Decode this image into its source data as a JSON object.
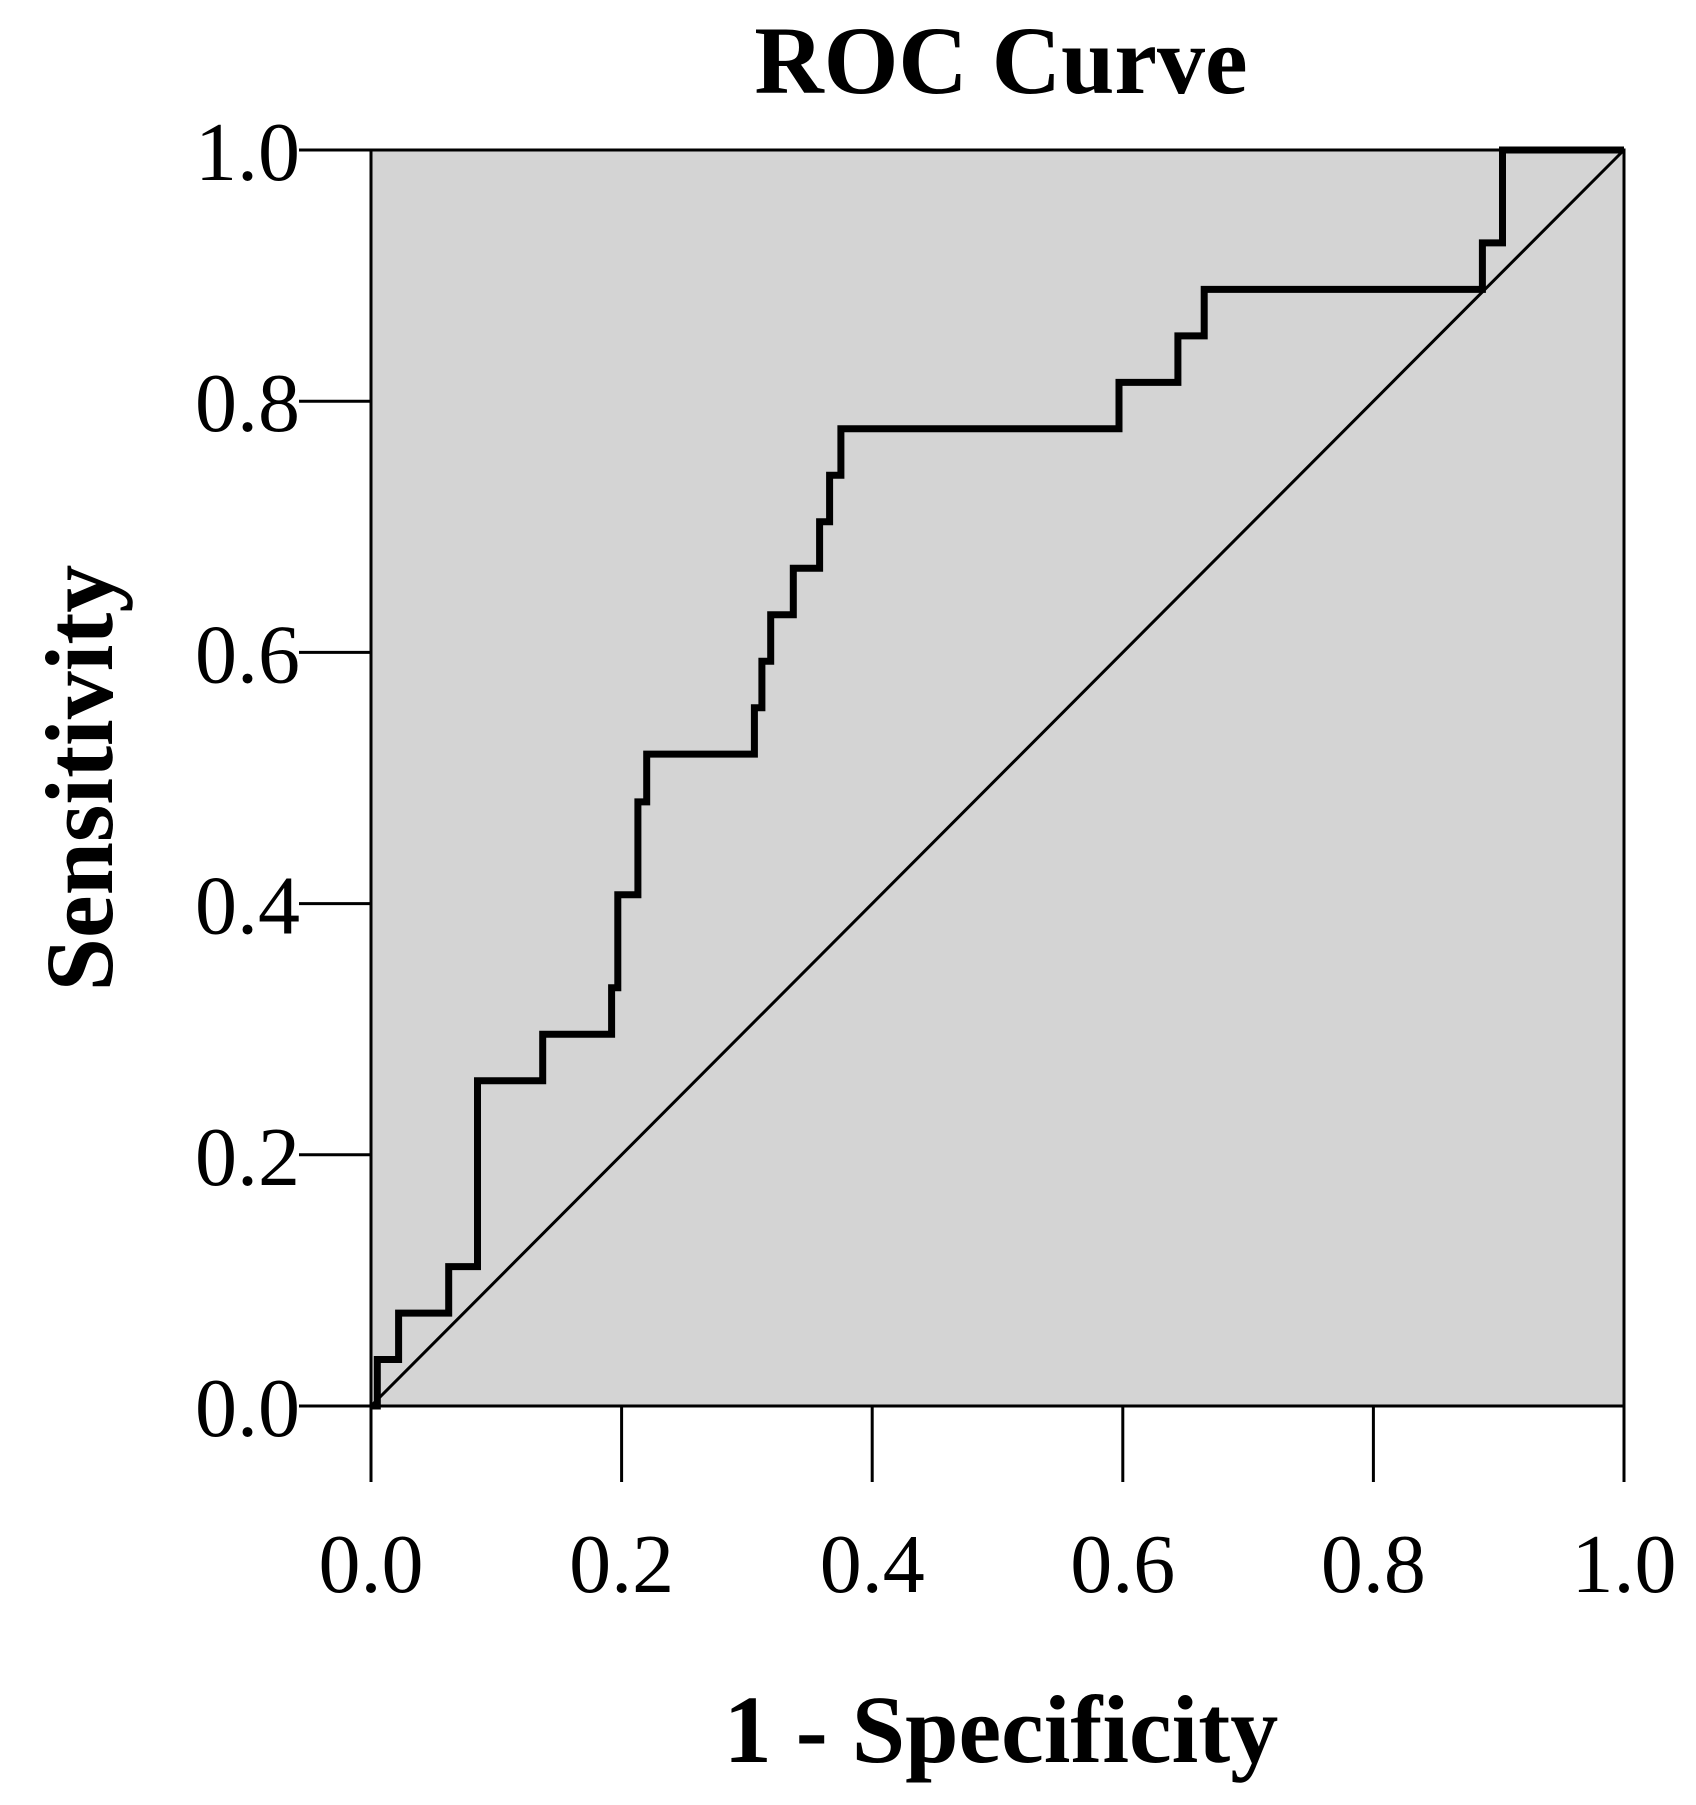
{
  "chart_data": {
    "type": "line",
    "title": "ROC Curve",
    "xlabel": "1 - Specificity",
    "ylabel": "Sensitivity",
    "xlim": [
      0.0,
      1.0
    ],
    "ylim": [
      0.0,
      1.0
    ],
    "x_ticks": [
      "0.0",
      "0.2",
      "0.4",
      "0.6",
      "0.8",
      "1.0"
    ],
    "y_ticks": [
      "0.0",
      "0.2",
      "0.4",
      "0.6",
      "0.8",
      "1.0"
    ],
    "grid": false,
    "legend": "none",
    "colors": {
      "plot_background": "#d4d4d4",
      "curve": "#000000",
      "reference_line": "#000000"
    },
    "series": [
      {
        "role": "roc-curve",
        "points": [
          [
            0.0,
            0.0
          ],
          [
            0.005,
            0.0
          ],
          [
            0.005,
            0.037
          ],
          [
            0.022,
            0.037
          ],
          [
            0.022,
            0.074
          ],
          [
            0.062,
            0.074
          ],
          [
            0.062,
            0.111
          ],
          [
            0.085,
            0.111
          ],
          [
            0.085,
            0.259
          ],
          [
            0.137,
            0.259
          ],
          [
            0.137,
            0.296
          ],
          [
            0.192,
            0.296
          ],
          [
            0.192,
            0.333
          ],
          [
            0.197,
            0.333
          ],
          [
            0.197,
            0.407
          ],
          [
            0.213,
            0.407
          ],
          [
            0.213,
            0.481
          ],
          [
            0.22,
            0.481
          ],
          [
            0.22,
            0.519
          ],
          [
            0.306,
            0.519
          ],
          [
            0.306,
            0.556
          ],
          [
            0.312,
            0.556
          ],
          [
            0.312,
            0.593
          ],
          [
            0.319,
            0.593
          ],
          [
            0.319,
            0.63
          ],
          [
            0.337,
            0.63
          ],
          [
            0.337,
            0.667
          ],
          [
            0.358,
            0.667
          ],
          [
            0.358,
            0.704
          ],
          [
            0.366,
            0.704
          ],
          [
            0.366,
            0.741
          ],
          [
            0.375,
            0.741
          ],
          [
            0.375,
            0.778
          ],
          [
            0.597,
            0.778
          ],
          [
            0.597,
            0.815
          ],
          [
            0.644,
            0.815
          ],
          [
            0.644,
            0.852
          ],
          [
            0.665,
            0.852
          ],
          [
            0.665,
            0.889
          ],
          [
            0.887,
            0.889
          ],
          [
            0.887,
            0.926
          ],
          [
            0.903,
            0.926
          ],
          [
            0.903,
            1.0
          ],
          [
            1.0,
            1.0
          ]
        ]
      },
      {
        "role": "reference-diagonal",
        "points": [
          [
            0.0,
            0.0
          ],
          [
            1.0,
            1.0
          ]
        ]
      }
    ]
  }
}
